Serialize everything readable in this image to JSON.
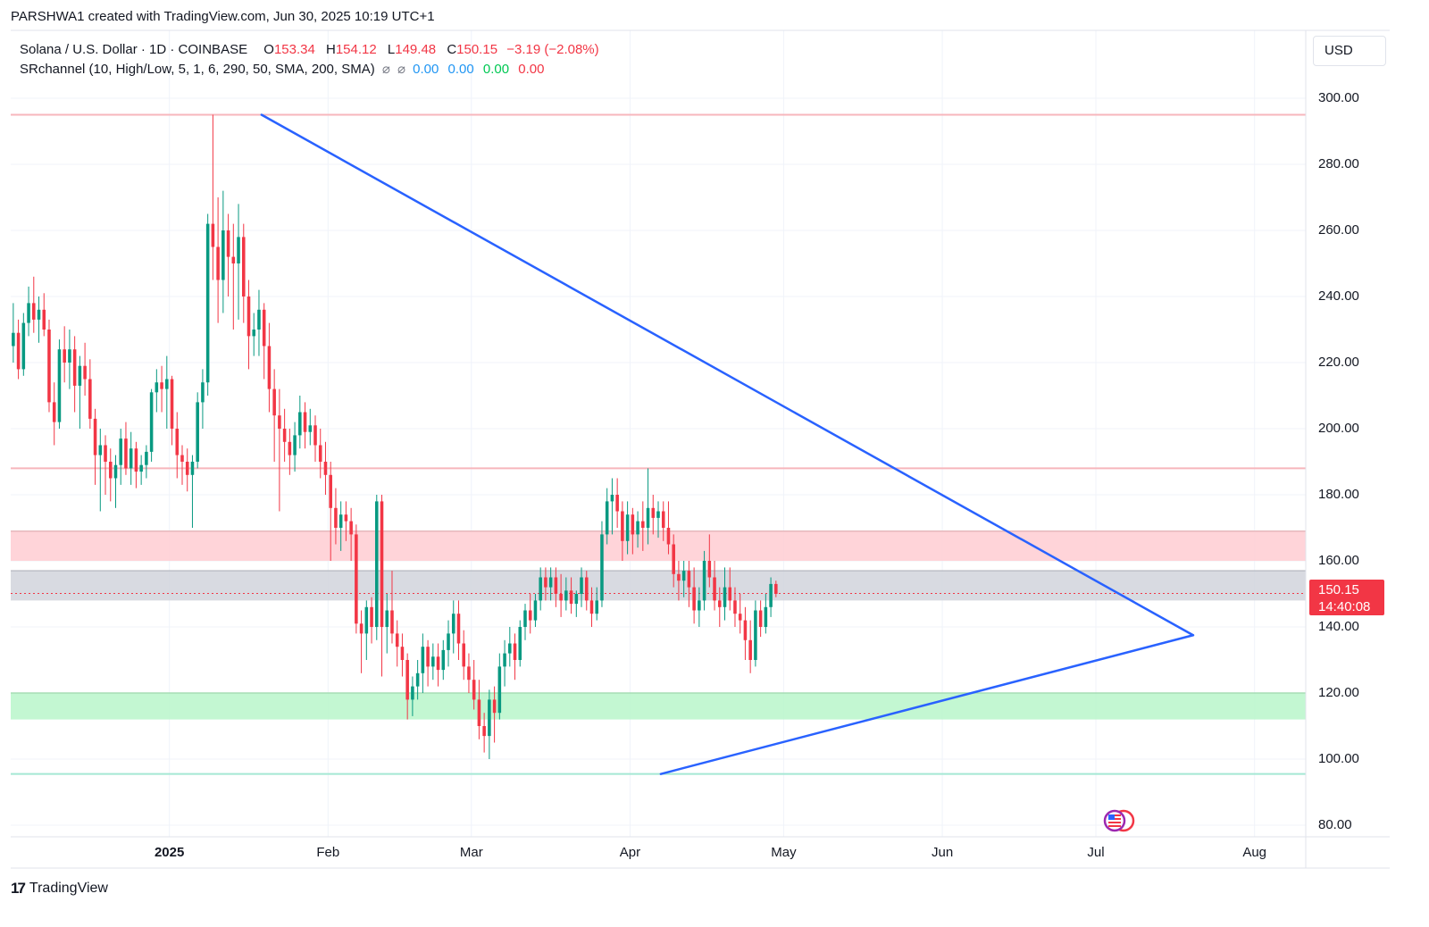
{
  "header": {
    "credit": "PARSHWA1 created with TradingView.com, Jun 30, 2025 10:19 UTC+1"
  },
  "legend": {
    "symbol": "Solana / U.S. Dollar · 1D · COINBASE",
    "open_label": "O",
    "open": "153.34",
    "high_label": "H",
    "high": "154.12",
    "low_label": "L",
    "low": "149.48",
    "close_label": "C",
    "close": "150.15",
    "change": "−3.19 (−2.08%)",
    "indicator": "SRchannel (10, High/Low, 5, 1, 6, 290, 50, SMA, 200, SMA)",
    "indicator_values": [
      "0.00",
      "0.00",
      "0.00",
      "0.00"
    ],
    "indicator_colors": [
      "#2196f3",
      "#2196f3",
      "#00c853",
      "#f23645"
    ]
  },
  "currency": "USD",
  "price_tag": {
    "price": "150.15",
    "countdown": "14:40:08",
    "color": "#f23645"
  },
  "footer": {
    "brand": "TradingView",
    "logo": "tradingview-logo-icon"
  },
  "event_icon": "us-flag-event-icon",
  "colors": {
    "up": "#089981",
    "down": "#f23645",
    "trendline": "#2962ff",
    "resistance_zone": "#ffcdd2",
    "neutral_zone": "#d1d4dc",
    "support_zone": "#b9f6ca"
  },
  "chart_data": {
    "type": "candlestick",
    "y_ticks": [
      "300.00",
      "280.00",
      "260.00",
      "240.00",
      "220.00",
      "200.00",
      "180.00",
      "160.00",
      "140.00",
      "120.00",
      "100.00",
      "80.00"
    ],
    "ylim": [
      75,
      315
    ],
    "x_ticks": [
      {
        "label": "2025",
        "date": "2025-01-01",
        "bold": true
      },
      {
        "label": "Feb",
        "date": "2025-02-01"
      },
      {
        "label": "Mar",
        "date": "2025-03-01"
      },
      {
        "label": "Apr",
        "date": "2025-04-01"
      },
      {
        "label": "May",
        "date": "2025-05-01"
      },
      {
        "label": "Jun",
        "date": "2025-06-01"
      },
      {
        "label": "Jul",
        "date": "2025-07-01"
      },
      {
        "label": "Aug",
        "date": "2025-08-01"
      }
    ],
    "xlim": [
      "2024-12-01",
      "2025-08-11"
    ],
    "grid": true,
    "horizontal_lines": [
      {
        "price": 295,
        "color": "#f7b6bc"
      },
      {
        "price": 188,
        "color": "#f7b6bc"
      },
      {
        "price": 95.5,
        "color": "#a5e8d4"
      },
      {
        "price": 150.15,
        "color": "#f23645",
        "dashed": true
      }
    ],
    "zones": [
      {
        "from": 160,
        "to": 169,
        "color": "#ffcdd2"
      },
      {
        "from": 148,
        "to": 157,
        "color": "#d1d4dc"
      },
      {
        "from": 112,
        "to": 120,
        "color": "#b9f6ca"
      }
    ],
    "trendlines": [
      {
        "from": [
          "2025-01-19",
          295
        ],
        "to": [
          "2025-07-20",
          137.5
        ]
      },
      {
        "from": [
          "2025-04-07",
          95.5
        ],
        "to": [
          "2025-07-20",
          137.5
        ]
      }
    ],
    "candles_start": "2024-12-01",
    "candles": [
      [
        225,
        238,
        220,
        229
      ],
      [
        229,
        233,
        215,
        218
      ],
      [
        218,
        235,
        216,
        232
      ],
      [
        232,
        243,
        228,
        238
      ],
      [
        238,
        246,
        229,
        233
      ],
      [
        233,
        240,
        226,
        236
      ],
      [
        236,
        241,
        228,
        230
      ],
      [
        230,
        233,
        205,
        208
      ],
      [
        208,
        214,
        195,
        202
      ],
      [
        202,
        227,
        200,
        224
      ],
      [
        224,
        231,
        214,
        220
      ],
      [
        220,
        230,
        212,
        224
      ],
      [
        224,
        228,
        205,
        213
      ],
      [
        213,
        222,
        200,
        219
      ],
      [
        219,
        226,
        210,
        215
      ],
      [
        215,
        221,
        200,
        203
      ],
      [
        203,
        206,
        183,
        192
      ],
      [
        192,
        200,
        175,
        195
      ],
      [
        195,
        198,
        180,
        190
      ],
      [
        190,
        194,
        178,
        185
      ],
      [
        185,
        192,
        176,
        189
      ],
      [
        189,
        200,
        183,
        197
      ],
      [
        197,
        202,
        186,
        188
      ],
      [
        188,
        199,
        183,
        194
      ],
      [
        194,
        196,
        182,
        187
      ],
      [
        187,
        192,
        183,
        189
      ],
      [
        189,
        195,
        185,
        193
      ],
      [
        193,
        212,
        190,
        211
      ],
      [
        211,
        218,
        205,
        214
      ],
      [
        214,
        219,
        205,
        212
      ],
      [
        212,
        222,
        200,
        215
      ],
      [
        215,
        216,
        195,
        200
      ],
      [
        200,
        205,
        185,
        192
      ],
      [
        192,
        195,
        183,
        190
      ],
      [
        190,
        194,
        181,
        186
      ],
      [
        186,
        192,
        170,
        190
      ],
      [
        190,
        211,
        188,
        208
      ],
      [
        208,
        218,
        200,
        214
      ],
      [
        214,
        265,
        210,
        262
      ],
      [
        262,
        295,
        245,
        255
      ],
      [
        255,
        270,
        232,
        245
      ],
      [
        245,
        272,
        235,
        260
      ],
      [
        260,
        265,
        240,
        252
      ],
      [
        252,
        262,
        230,
        250
      ],
      [
        250,
        268,
        233,
        258
      ],
      [
        258,
        262,
        232,
        240
      ],
      [
        240,
        245,
        218,
        228
      ],
      [
        228,
        235,
        222,
        230
      ],
      [
        230,
        242,
        222,
        236
      ],
      [
        236,
        238,
        215,
        225
      ],
      [
        225,
        232,
        205,
        212
      ],
      [
        212,
        218,
        190,
        204
      ],
      [
        204,
        212,
        175,
        200
      ],
      [
        200,
        206,
        190,
        196
      ],
      [
        196,
        200,
        186,
        192
      ],
      [
        192,
        202,
        187,
        198
      ],
      [
        198,
        210,
        194,
        205
      ],
      [
        205,
        208,
        194,
        199
      ],
      [
        199,
        206,
        195,
        201
      ],
      [
        201,
        204,
        190,
        195
      ],
      [
        195,
        200,
        185,
        190
      ],
      [
        190,
        196,
        180,
        186
      ],
      [
        186,
        190,
        160,
        176
      ],
      [
        176,
        182,
        165,
        170
      ],
      [
        170,
        178,
        163,
        174
      ],
      [
        174,
        178,
        166,
        172
      ],
      [
        172,
        176,
        160,
        168
      ],
      [
        168,
        171,
        138,
        141
      ],
      [
        141,
        145,
        126,
        138
      ],
      [
        138,
        148,
        130,
        146
      ],
      [
        146,
        149,
        135,
        140
      ],
      [
        140,
        180,
        136,
        178
      ],
      [
        178,
        180,
        125,
        140
      ],
      [
        140,
        150,
        132,
        145
      ],
      [
        145,
        157,
        135,
        138
      ],
      [
        138,
        142,
        128,
        134
      ],
      [
        134,
        138,
        125,
        130
      ],
      [
        130,
        132,
        112,
        118
      ],
      [
        118,
        125,
        113,
        122
      ],
      [
        122,
        130,
        118,
        126
      ],
      [
        126,
        138,
        120,
        134
      ],
      [
        134,
        136,
        122,
        128
      ],
      [
        128,
        135,
        124,
        131
      ],
      [
        131,
        135,
        122,
        127
      ],
      [
        127,
        136,
        124,
        133
      ],
      [
        133,
        142,
        128,
        138
      ],
      [
        138,
        148,
        132,
        144
      ],
      [
        144,
        148,
        130,
        135
      ],
      [
        135,
        139,
        124,
        128
      ],
      [
        128,
        132,
        120,
        124
      ],
      [
        124,
        130,
        115,
        118
      ],
      [
        118,
        124,
        106,
        110
      ],
      [
        110,
        114,
        102,
        107
      ],
      [
        107,
        121,
        100,
        118
      ],
      [
        118,
        122,
        105,
        114
      ],
      [
        114,
        132,
        112,
        128
      ],
      [
        128,
        136,
        122,
        132
      ],
      [
        132,
        140,
        128,
        135
      ],
      [
        135,
        138,
        124,
        130
      ],
      [
        130,
        142,
        128,
        140
      ],
      [
        140,
        147,
        136,
        145
      ],
      [
        145,
        150,
        138,
        142
      ],
      [
        142,
        150,
        140,
        148
      ],
      [
        148,
        158,
        145,
        155
      ],
      [
        155,
        158,
        148,
        152
      ],
      [
        152,
        158,
        148,
        155
      ],
      [
        155,
        158,
        146,
        150
      ],
      [
        150,
        156,
        143,
        148
      ],
      [
        148,
        155,
        145,
        151
      ],
      [
        151,
        155,
        144,
        147
      ],
      [
        147,
        151,
        143,
        150
      ],
      [
        150,
        158,
        146,
        155
      ],
      [
        155,
        157,
        145,
        148
      ],
      [
        148,
        152,
        140,
        144
      ],
      [
        144,
        152,
        142,
        148
      ],
      [
        148,
        172,
        146,
        168
      ],
      [
        168,
        182,
        165,
        178
      ],
      [
        178,
        185,
        168,
        180
      ],
      [
        180,
        185,
        170,
        175
      ],
      [
        175,
        178,
        160,
        166
      ],
      [
        166,
        178,
        162,
        174
      ],
      [
        174,
        176,
        162,
        168
      ],
      [
        168,
        175,
        164,
        172
      ],
      [
        172,
        178,
        163,
        170
      ],
      [
        170,
        188,
        165,
        176
      ],
      [
        176,
        180,
        168,
        173
      ],
      [
        173,
        178,
        167,
        175
      ],
      [
        175,
        178,
        166,
        170
      ],
      [
        170,
        178,
        162,
        165
      ],
      [
        165,
        168,
        152,
        156
      ],
      [
        156,
        160,
        148,
        154
      ],
      [
        154,
        160,
        149,
        157
      ],
      [
        157,
        160,
        146,
        152
      ],
      [
        152,
        158,
        141,
        145
      ],
      [
        145,
        152,
        140,
        148
      ],
      [
        148,
        163,
        145,
        160
      ],
      [
        160,
        168,
        152,
        155
      ],
      [
        155,
        160,
        145,
        148
      ],
      [
        148,
        152,
        140,
        146
      ],
      [
        146,
        158,
        142,
        152
      ],
      [
        152,
        158,
        145,
        148
      ],
      [
        148,
        152,
        140,
        144
      ],
      [
        144,
        150,
        138,
        142
      ],
      [
        142,
        146,
        130,
        136
      ],
      [
        136,
        142,
        126,
        130
      ],
      [
        130,
        148,
        128,
        145
      ],
      [
        145,
        148,
        137,
        140
      ],
      [
        140,
        150,
        138,
        146
      ],
      [
        146,
        155,
        143,
        153
      ],
      [
        153,
        154,
        149,
        150
      ]
    ]
  }
}
